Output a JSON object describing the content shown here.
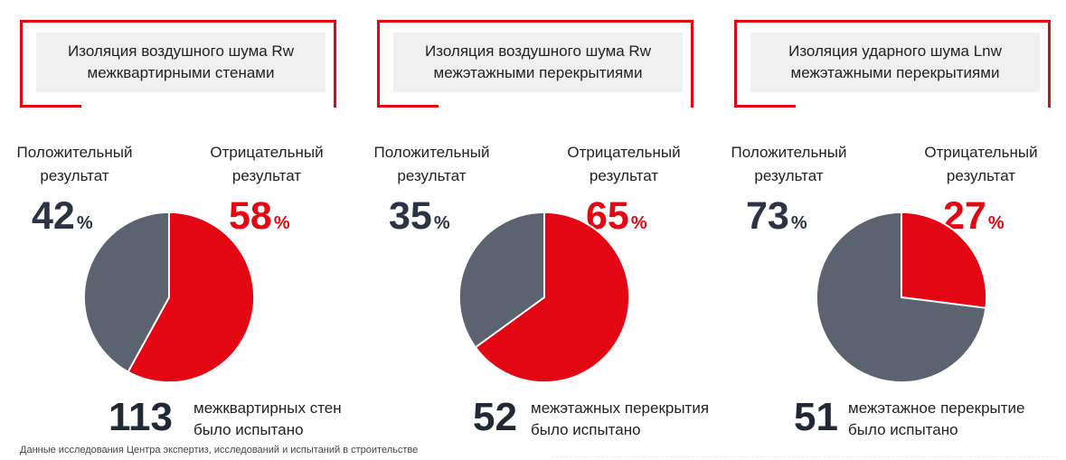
{
  "chart_data": [
    {
      "type": "pie",
      "title": "Изоляция воздушного шума Rw межквартирными стенами",
      "slices": [
        {
          "label_line1": "Положительный",
          "label_line2": "результат",
          "value": 42,
          "color": "#5b6270"
        },
        {
          "label_line1": "Отрицательный",
          "label_line2": "результат",
          "value": 58,
          "color": "#e30613"
        }
      ],
      "unit": "%",
      "count": "113",
      "count_text_line1": "межквартирных стен",
      "count_text_line2": "было испытано"
    },
    {
      "type": "pie",
      "title": "Изоляция воздушного шума Rw межэтажными перекрытиями",
      "slices": [
        {
          "label_line1": "Положительный",
          "label_line2": "результат",
          "value": 35,
          "color": "#5b6270"
        },
        {
          "label_line1": "Отрицательный",
          "label_line2": "результат",
          "value": 65,
          "color": "#e30613"
        }
      ],
      "unit": "%",
      "count": "52",
      "count_text_line1": "межэтажных перекрытия",
      "count_text_line2": "было испытано"
    },
    {
      "type": "pie",
      "title": "Изоляция ударного шума Lnw межэтажными перекрытиями",
      "slices": [
        {
          "label_line1": "Положительный",
          "label_line2": "результат",
          "value": 73,
          "color": "#5b6270"
        },
        {
          "label_line1": "Отрицательный",
          "label_line2": "результат",
          "value": 27,
          "color": "#e30613"
        }
      ],
      "unit": "%",
      "count": "51",
      "count_text_line1": "межэтажное перекрытие",
      "count_text_line2": "было испытано"
    }
  ],
  "footnote": "Данные исследования Центра экспертиз, исследований и испытаний в строительстве",
  "colors": {
    "accent": "#e30613",
    "dark": "#2b3445",
    "grey": "#5b6270"
  }
}
